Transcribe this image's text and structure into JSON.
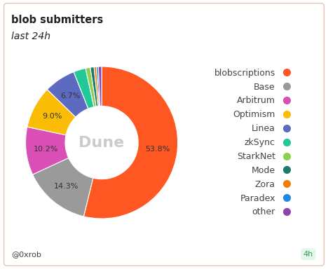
{
  "chart_data": {
    "type": "pie",
    "title": "blob submitters",
    "subtitle": "last 24h",
    "categories": [
      "blobscriptions",
      "Base",
      "Arbitrum",
      "Optimism",
      "Linea",
      "zkSync",
      "StarkNet",
      "Mode",
      "Zora",
      "Paradex",
      "other"
    ],
    "values": [
      53.8,
      14.3,
      10.2,
      9.0,
      6.7,
      2.6,
      1.0,
      0.8,
      0.5,
      0.4,
      0.7
    ],
    "value_labels": [
      "53.8%",
      "14.3%",
      "10.2%",
      "9.0%",
      "6.7%",
      null,
      null,
      null,
      null,
      null,
      null
    ],
    "colors": [
      "#ff5722",
      "#9a9a9a",
      "#d94fb5",
      "#fbbc05",
      "#5c6bc0",
      "#20c997",
      "#8fd14f",
      "#1b7a6e",
      "#f57c00",
      "#1e88e5",
      "#8e44ad"
    ],
    "data_labels": true,
    "legend": "right",
    "source": "@0xrob",
    "refresh": "4h",
    "watermark": "Dune"
  }
}
